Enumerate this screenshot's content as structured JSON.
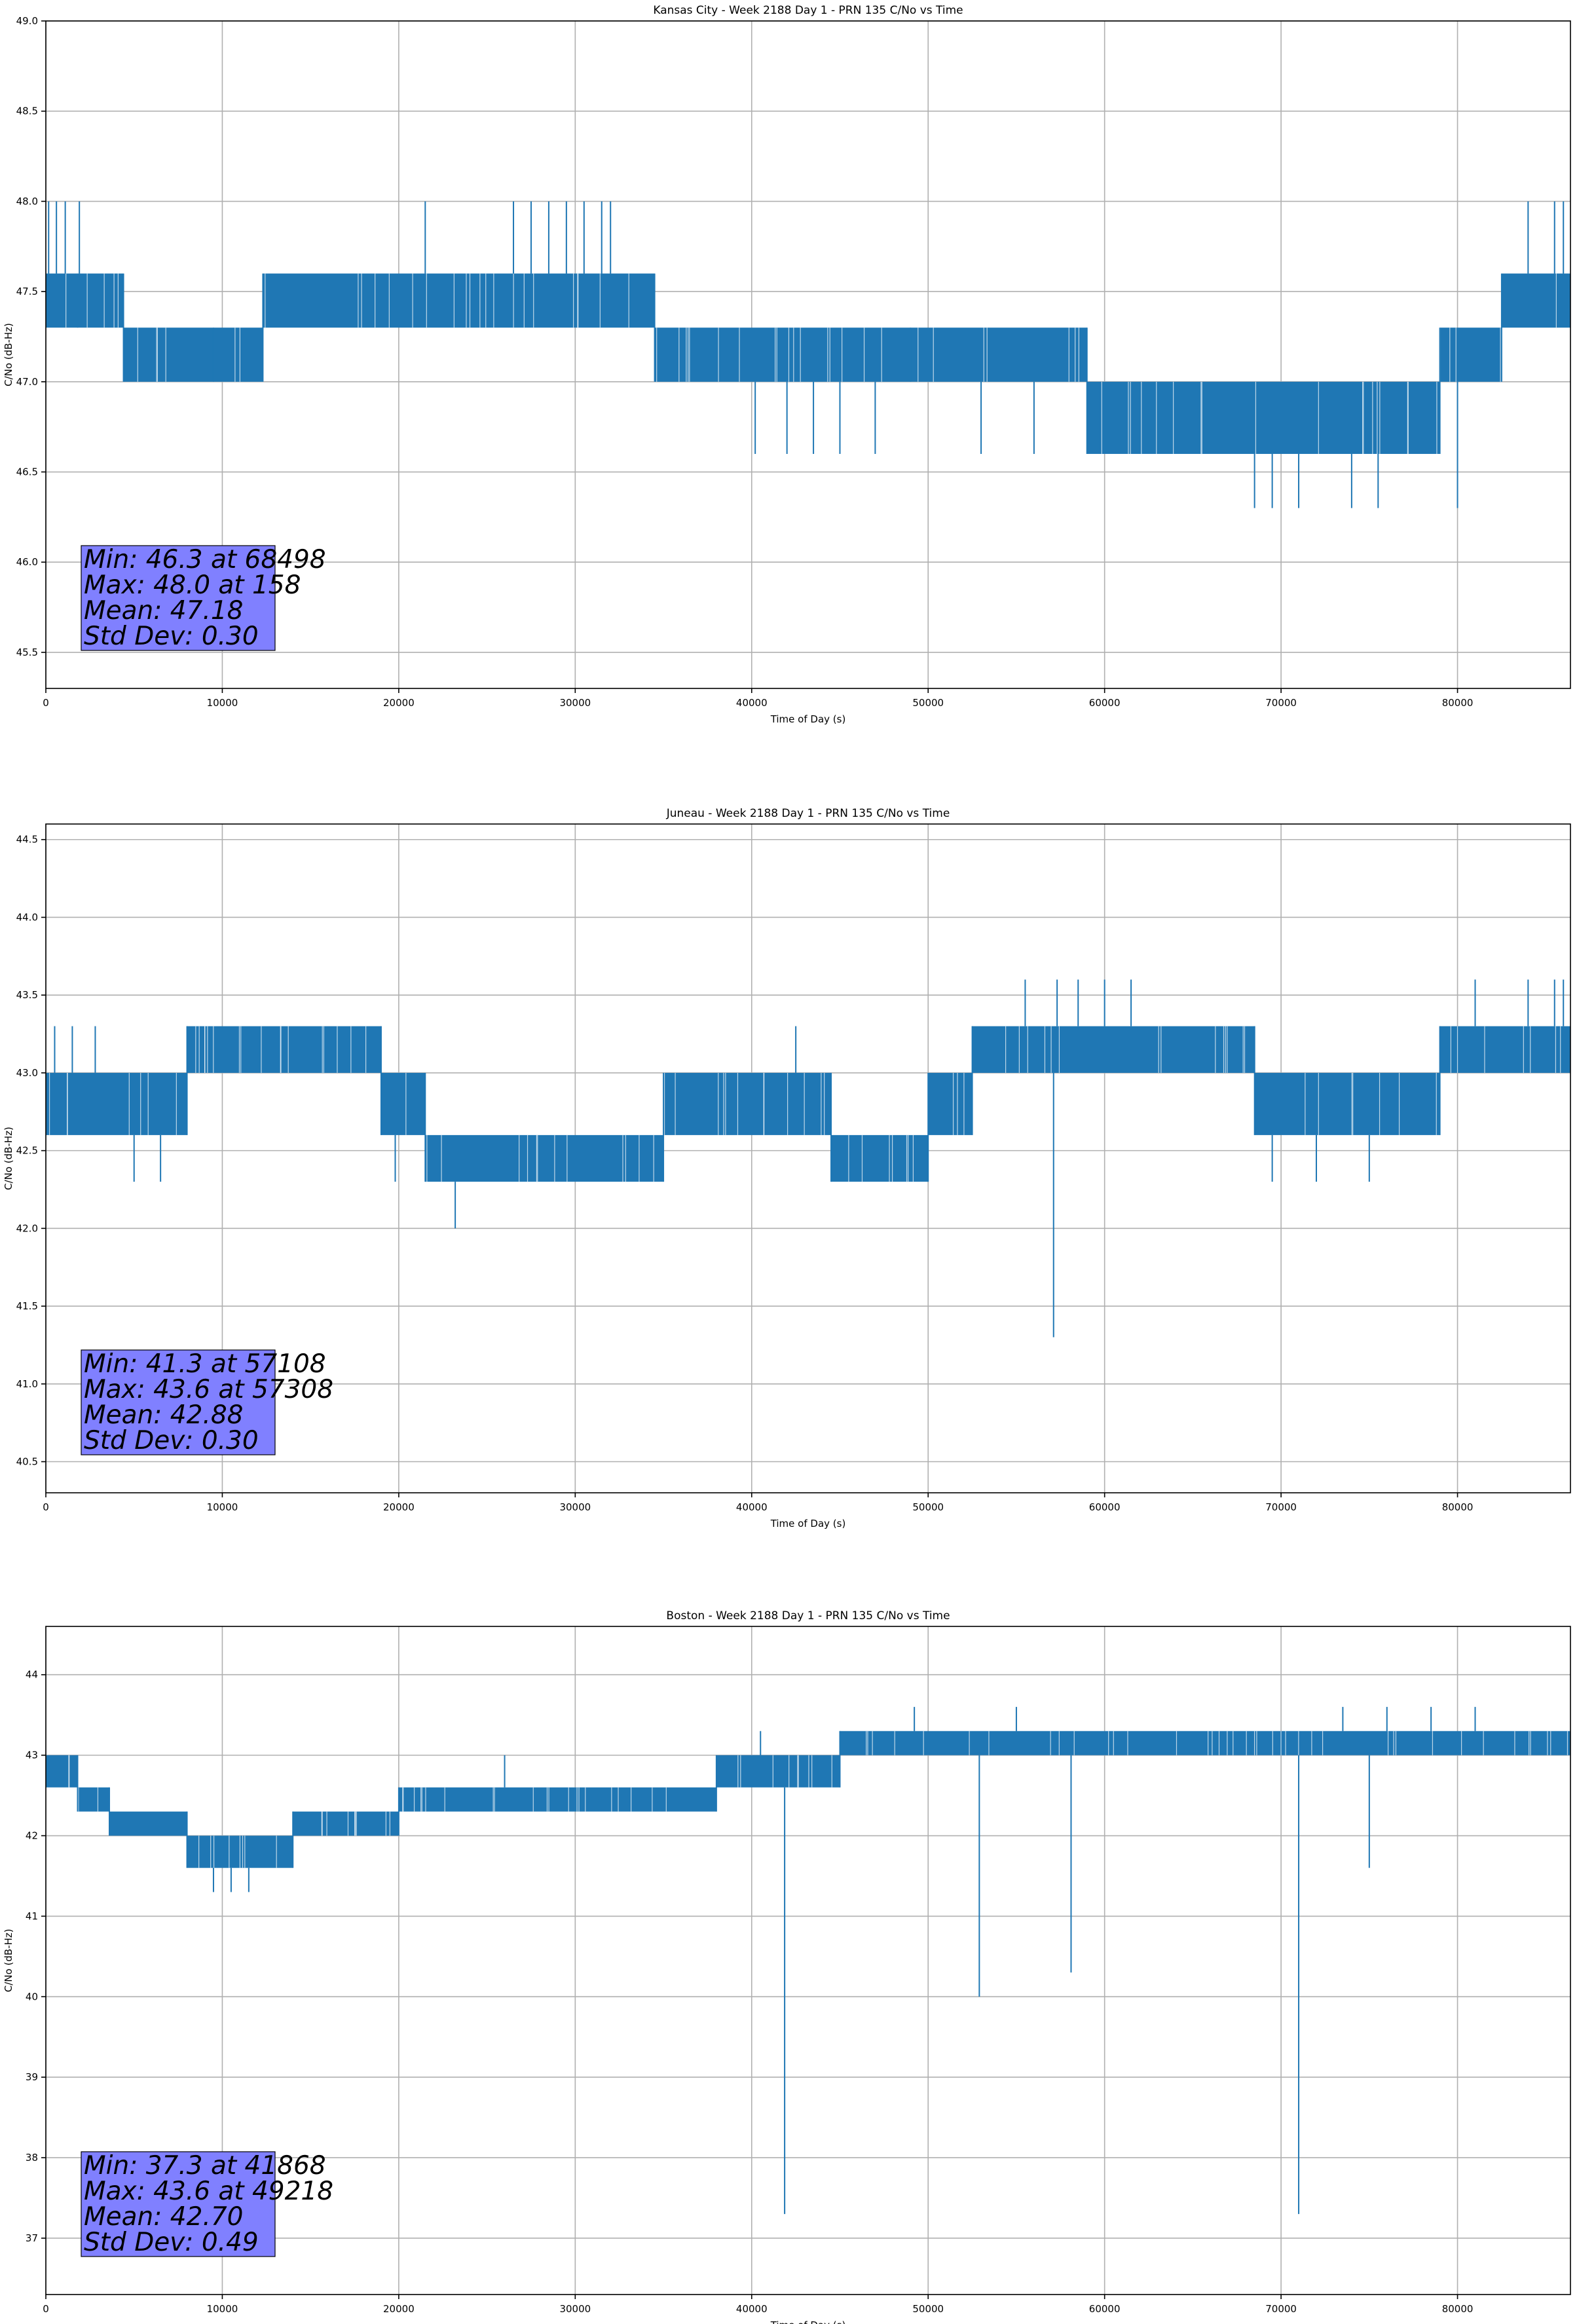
{
  "chart_data": [
    {
      "type": "line",
      "title": "Kansas City - Week 2188 Day 1 - PRN 135 C/No vs Time",
      "xlabel": "Time of Day (s)",
      "ylabel": "C/No (dB-Hz)",
      "xlim": [
        0,
        86400
      ],
      "ylim": [
        45.3,
        49.0
      ],
      "x_ticks": [
        0,
        10000,
        20000,
        30000,
        40000,
        50000,
        60000,
        70000,
        80000
      ],
      "y_ticks": [
        45.5,
        46.0,
        46.5,
        47.0,
        47.5,
        48.0,
        48.5,
        49.0
      ],
      "y_tick_decimals": 1,
      "grid": true,
      "series_color": "#1f77b4",
      "band_segments": [
        {
          "x0": 0,
          "x1": 1800,
          "low": 47.3,
          "high": 47.6
        },
        {
          "x0": 1800,
          "x1": 4400,
          "low": 47.3,
          "high": 47.6
        },
        {
          "x0": 4400,
          "x1": 9500,
          "low": 47.0,
          "high": 47.3
        },
        {
          "x0": 9500,
          "x1": 12300,
          "low": 47.0,
          "high": 47.3
        },
        {
          "x0": 12300,
          "x1": 34500,
          "low": 47.3,
          "high": 47.6
        },
        {
          "x0": 34500,
          "x1": 49000,
          "low": 47.0,
          "high": 47.3
        },
        {
          "x0": 49000,
          "x1": 59000,
          "low": 47.0,
          "high": 47.3
        },
        {
          "x0": 59000,
          "x1": 79000,
          "low": 46.6,
          "high": 47.0
        },
        {
          "x0": 79000,
          "x1": 82500,
          "low": 47.0,
          "high": 47.3
        },
        {
          "x0": 82500,
          "x1": 86400,
          "low": 47.3,
          "high": 47.6
        }
      ],
      "spikes": [
        {
          "x": 158,
          "y": 48.0
        },
        {
          "x": 600,
          "y": 48.0
        },
        {
          "x": 1100,
          "y": 48.0
        },
        {
          "x": 1900,
          "y": 48.0
        },
        {
          "x": 21500,
          "y": 48.0
        },
        {
          "x": 26500,
          "y": 48.0
        },
        {
          "x": 27500,
          "y": 48.0
        },
        {
          "x": 28500,
          "y": 48.0
        },
        {
          "x": 29500,
          "y": 48.0
        },
        {
          "x": 30500,
          "y": 48.0
        },
        {
          "x": 31500,
          "y": 48.0
        },
        {
          "x": 32000,
          "y": 48.0
        },
        {
          "x": 84000,
          "y": 48.0
        },
        {
          "x": 85500,
          "y": 48.0
        },
        {
          "x": 86000,
          "y": 48.0
        },
        {
          "x": 40200,
          "y": 46.6
        },
        {
          "x": 42000,
          "y": 46.6
        },
        {
          "x": 43500,
          "y": 46.6
        },
        {
          "x": 45000,
          "y": 46.6
        },
        {
          "x": 47000,
          "y": 46.6
        },
        {
          "x": 53000,
          "y": 46.6
        },
        {
          "x": 56000,
          "y": 46.6
        },
        {
          "x": 68498,
          "y": 46.3
        },
        {
          "x": 69500,
          "y": 46.3
        },
        {
          "x": 71000,
          "y": 46.3
        },
        {
          "x": 74000,
          "y": 46.3
        },
        {
          "x": 75500,
          "y": 46.3
        },
        {
          "x": 80000,
          "y": 46.3
        }
      ],
      "stats": [
        "Min: 46.3 at 68498",
        "Max: 48.0 at 158",
        "Mean: 47.18",
        "Std Dev: 0.30"
      ],
      "stats_box_color": "#8080ff"
    },
    {
      "type": "line",
      "title": "Juneau - Week 2188 Day 1 - PRN 135 C/No vs Time",
      "xlabel": "Time of Day (s)",
      "ylabel": "C/No (dB-Hz)",
      "xlim": [
        0,
        86400
      ],
      "ylim": [
        40.3,
        44.6
      ],
      "x_ticks": [
        0,
        10000,
        20000,
        30000,
        40000,
        50000,
        60000,
        70000,
        80000
      ],
      "y_ticks": [
        40.5,
        41.0,
        41.5,
        42.0,
        42.5,
        43.0,
        43.5,
        44.0,
        44.5
      ],
      "y_tick_decimals": 1,
      "grid": true,
      "series_color": "#1f77b4",
      "band_segments": [
        {
          "x0": 0,
          "x1": 8000,
          "low": 42.6,
          "high": 43.0
        },
        {
          "x0": 8000,
          "x1": 19000,
          "low": 43.0,
          "high": 43.3
        },
        {
          "x0": 19000,
          "x1": 21500,
          "low": 42.6,
          "high": 43.0
        },
        {
          "x0": 21500,
          "x1": 35000,
          "low": 42.3,
          "high": 42.6
        },
        {
          "x0": 35000,
          "x1": 44500,
          "low": 42.6,
          "high": 43.0
        },
        {
          "x0": 44500,
          "x1": 50000,
          "low": 42.3,
          "high": 42.6
        },
        {
          "x0": 50000,
          "x1": 52500,
          "low": 42.6,
          "high": 43.0
        },
        {
          "x0": 52500,
          "x1": 68500,
          "low": 43.0,
          "high": 43.3
        },
        {
          "x0": 68500,
          "x1": 79000,
          "low": 42.6,
          "high": 43.0
        },
        {
          "x0": 79000,
          "x1": 86400,
          "low": 43.0,
          "high": 43.3
        }
      ],
      "spikes": [
        {
          "x": 500,
          "y": 43.3
        },
        {
          "x": 1500,
          "y": 43.3
        },
        {
          "x": 2800,
          "y": 43.3
        },
        {
          "x": 5000,
          "y": 42.3
        },
        {
          "x": 6500,
          "y": 42.3
        },
        {
          "x": 19800,
          "y": 42.3
        },
        {
          "x": 23200,
          "y": 42.0
        },
        {
          "x": 42500,
          "y": 43.3
        },
        {
          "x": 57108,
          "y": 41.3
        },
        {
          "x": 55500,
          "y": 43.6
        },
        {
          "x": 57308,
          "y": 43.6
        },
        {
          "x": 58500,
          "y": 43.6
        },
        {
          "x": 60000,
          "y": 43.6
        },
        {
          "x": 61500,
          "y": 43.6
        },
        {
          "x": 69500,
          "y": 42.3
        },
        {
          "x": 72000,
          "y": 42.3
        },
        {
          "x": 75000,
          "y": 42.3
        },
        {
          "x": 81000,
          "y": 43.6
        },
        {
          "x": 84000,
          "y": 43.6
        },
        {
          "x": 85500,
          "y": 43.6
        },
        {
          "x": 86000,
          "y": 43.6
        }
      ],
      "stats": [
        "Min: 41.3 at 57108",
        "Max: 43.6 at 57308",
        "Mean: 42.88",
        "Std Dev: 0.30"
      ],
      "stats_box_color": "#8080ff"
    },
    {
      "type": "line",
      "title": "Boston - Week 2188 Day 1 - PRN 135 C/No vs Time",
      "xlabel": "Time of Day (s)",
      "ylabel": "C/No (dB-Hz)",
      "xlim": [
        0,
        86400
      ],
      "ylim": [
        36.3,
        44.6
      ],
      "x_ticks": [
        0,
        10000,
        20000,
        30000,
        40000,
        50000,
        60000,
        70000,
        80000
      ],
      "y_ticks": [
        37,
        38,
        39,
        40,
        41,
        42,
        43,
        44
      ],
      "y_tick_decimals": 0,
      "grid": true,
      "series_color": "#1f77b4",
      "band_segments": [
        {
          "x0": 0,
          "x1": 1800,
          "low": 42.6,
          "high": 43.0
        },
        {
          "x0": 1800,
          "x1": 3600,
          "low": 42.3,
          "high": 42.6
        },
        {
          "x0": 3600,
          "x1": 8000,
          "low": 42.0,
          "high": 42.3
        },
        {
          "x0": 8000,
          "x1": 14000,
          "low": 41.6,
          "high": 42.0
        },
        {
          "x0": 14000,
          "x1": 20000,
          "low": 42.0,
          "high": 42.3
        },
        {
          "x0": 20000,
          "x1": 38000,
          "low": 42.3,
          "high": 42.6
        },
        {
          "x0": 38000,
          "x1": 45000,
          "low": 42.6,
          "high": 43.0
        },
        {
          "x0": 45000,
          "x1": 86400,
          "low": 43.0,
          "high": 43.3
        }
      ],
      "spikes": [
        {
          "x": 9500,
          "y": 41.3
        },
        {
          "x": 10500,
          "y": 41.3
        },
        {
          "x": 11500,
          "y": 41.3
        },
        {
          "x": 26000,
          "y": 43.0
        },
        {
          "x": 40500,
          "y": 43.3
        },
        {
          "x": 41868,
          "y": 37.3
        },
        {
          "x": 49218,
          "y": 43.6
        },
        {
          "x": 52900,
          "y": 40.0
        },
        {
          "x": 55000,
          "y": 43.6
        },
        {
          "x": 58100,
          "y": 40.3
        },
        {
          "x": 71000,
          "y": 37.3
        },
        {
          "x": 75000,
          "y": 41.6
        },
        {
          "x": 73500,
          "y": 43.6
        },
        {
          "x": 76000,
          "y": 43.6
        },
        {
          "x": 78500,
          "y": 43.6
        },
        {
          "x": 81000,
          "y": 43.6
        }
      ],
      "stats": [
        "Min: 37.3 at 41868",
        "Max: 43.6 at 49218",
        "Mean: 42.70",
        "Std Dev: 0.49"
      ],
      "stats_box_color": "#8080ff"
    }
  ]
}
